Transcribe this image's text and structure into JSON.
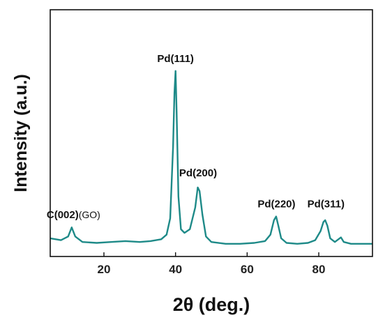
{
  "chart_data": {
    "type": "line",
    "xlabel": "2θ (deg.)",
    "ylabel": "Intensity (a.u.)",
    "xlim": [
      5,
      95
    ],
    "ylim": [
      0,
      1
    ],
    "x_ticks": [
      "20",
      "40",
      "60",
      "80"
    ],
    "x_tick_values": [
      20,
      40,
      60,
      80
    ],
    "grid": false,
    "colors": {
      "series": "#1e8a88",
      "axis": "#111111"
    },
    "series": [
      {
        "x": [
          5,
          8,
          10,
          11,
          12,
          14,
          18,
          22,
          26,
          30,
          33,
          36,
          37.5,
          38.5,
          39.3,
          39.7,
          40.0,
          40.3,
          40.8,
          41.5,
          42.5,
          44,
          45.5,
          46.2,
          46.7,
          47.5,
          48.5,
          50,
          54,
          58,
          62,
          65,
          66.5,
          67.5,
          68.1,
          68.7,
          69.5,
          71,
          74,
          77,
          79,
          80.5,
          81.3,
          81.8,
          82.4,
          83.2,
          84.5,
          85.5,
          86.2,
          87,
          89,
          92,
          95
        ],
        "y": [
          0.05,
          0.04,
          0.06,
          0.11,
          0.06,
          0.03,
          0.025,
          0.03,
          0.035,
          0.03,
          0.035,
          0.045,
          0.07,
          0.16,
          0.55,
          0.85,
          0.97,
          0.75,
          0.28,
          0.1,
          0.08,
          0.1,
          0.22,
          0.33,
          0.31,
          0.18,
          0.06,
          0.03,
          0.02,
          0.02,
          0.025,
          0.035,
          0.07,
          0.15,
          0.17,
          0.12,
          0.05,
          0.025,
          0.02,
          0.025,
          0.04,
          0.09,
          0.14,
          0.15,
          0.12,
          0.05,
          0.03,
          0.045,
          0.055,
          0.03,
          0.02,
          0.02,
          0.02
        ]
      }
    ],
    "annotations": [
      {
        "main": "C(002)",
        "suffix": "(GO)",
        "x": 11.5,
        "y": 0.16
      },
      {
        "main": "Pd(111)",
        "suffix": "",
        "x": 40.0,
        "y": 1.02
      },
      {
        "main": "Pd(200)",
        "suffix": "",
        "x": 46.3,
        "y": 0.39
      },
      {
        "main": "Pd(220)",
        "suffix": "",
        "x": 68.2,
        "y": 0.22
      },
      {
        "main": "Pd(311)",
        "suffix": "",
        "x": 82.0,
        "y": 0.22
      }
    ]
  }
}
